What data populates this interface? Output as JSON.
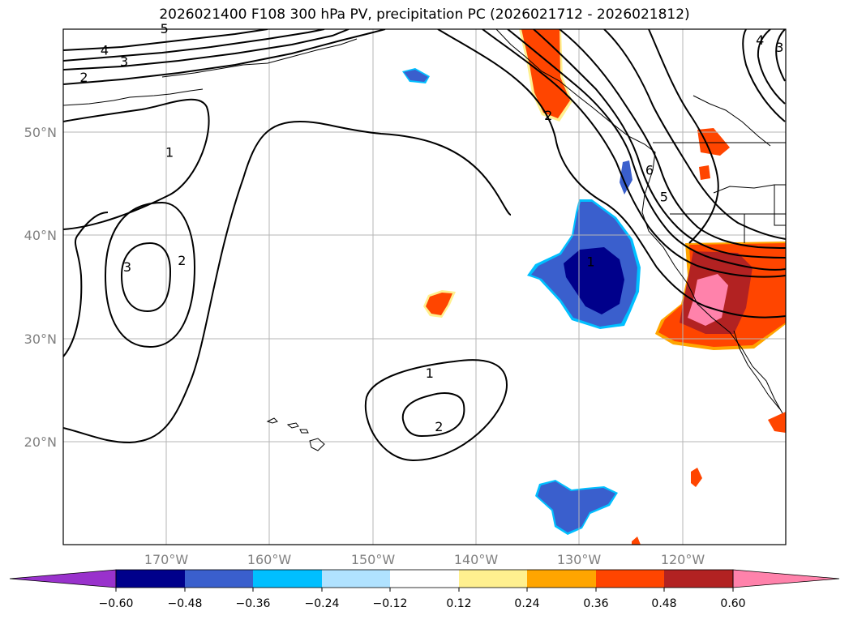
{
  "chart_data": {
    "type": "contour_map",
    "title": "2026021400 F108 300 hPa PV, precipitation PC (2026021712 - 2026021812)",
    "map": {
      "lon_range": [
        -180,
        -110
      ],
      "lat_range": [
        10,
        60
      ],
      "lon_ticks": [
        -170,
        -160,
        -150,
        -140,
        -130,
        -120
      ],
      "lon_tick_labels": [
        "170°W",
        "160°W",
        "150°W",
        "140°W",
        "130°W",
        "120°W"
      ],
      "lat_ticks": [
        20,
        30,
        40,
        50
      ],
      "lat_tick_labels": [
        "20°N",
        "30°N",
        "40°N",
        "50°N"
      ],
      "grid": true
    },
    "colorbar": {
      "orientation": "horizontal",
      "extend": "both",
      "levels": [
        -0.6,
        -0.48,
        -0.36,
        -0.24,
        -0.12,
        0.12,
        0.24,
        0.36,
        0.48,
        0.6
      ],
      "tick_labels": [
        "−0.60",
        "−0.48",
        "−0.36",
        "−0.24",
        "−0.12",
        "0.12",
        "0.24",
        "0.36",
        "0.48",
        "0.60"
      ],
      "colors": [
        "#9932cc",
        "#00008b",
        "#3a5fcd",
        "#00bfff",
        "#b0e2ff",
        "#ffffff",
        "#fff08f",
        "#ffa500",
        "#ff4500",
        "#b22222",
        "#ff82ab"
      ]
    },
    "pv_contour_labels": [
      {
        "value": "5",
        "lon": -170.2,
        "lat": 60.0
      },
      {
        "value": "4",
        "lon": -176.0,
        "lat": 57.9
      },
      {
        "value": "3",
        "lon": -174.1,
        "lat": 56.8
      },
      {
        "value": "2",
        "lon": -178.0,
        "lat": 55.3
      },
      {
        "value": "1",
        "lon": -169.7,
        "lat": 48.0
      },
      {
        "value": "3",
        "lon": -173.8,
        "lat": 36.9
      },
      {
        "value": "2",
        "lon": -168.5,
        "lat": 37.5
      },
      {
        "value": "1",
        "lon": -144.5,
        "lat": 26.6
      },
      {
        "value": "2",
        "lon": -143.6,
        "lat": 21.4
      },
      {
        "value": "2",
        "lon": -133.0,
        "lat": 51.6
      },
      {
        "value": "6",
        "lon": -123.2,
        "lat": 46.3
      },
      {
        "value": "5",
        "lon": -121.8,
        "lat": 43.7
      },
      {
        "value": "1",
        "lon": -128.9,
        "lat": 37.4
      },
      {
        "value": "4",
        "lon": -112.5,
        "lat": 58.9
      },
      {
        "value": "3",
        "lon": -110.6,
        "lat": 58.2
      }
    ]
  }
}
